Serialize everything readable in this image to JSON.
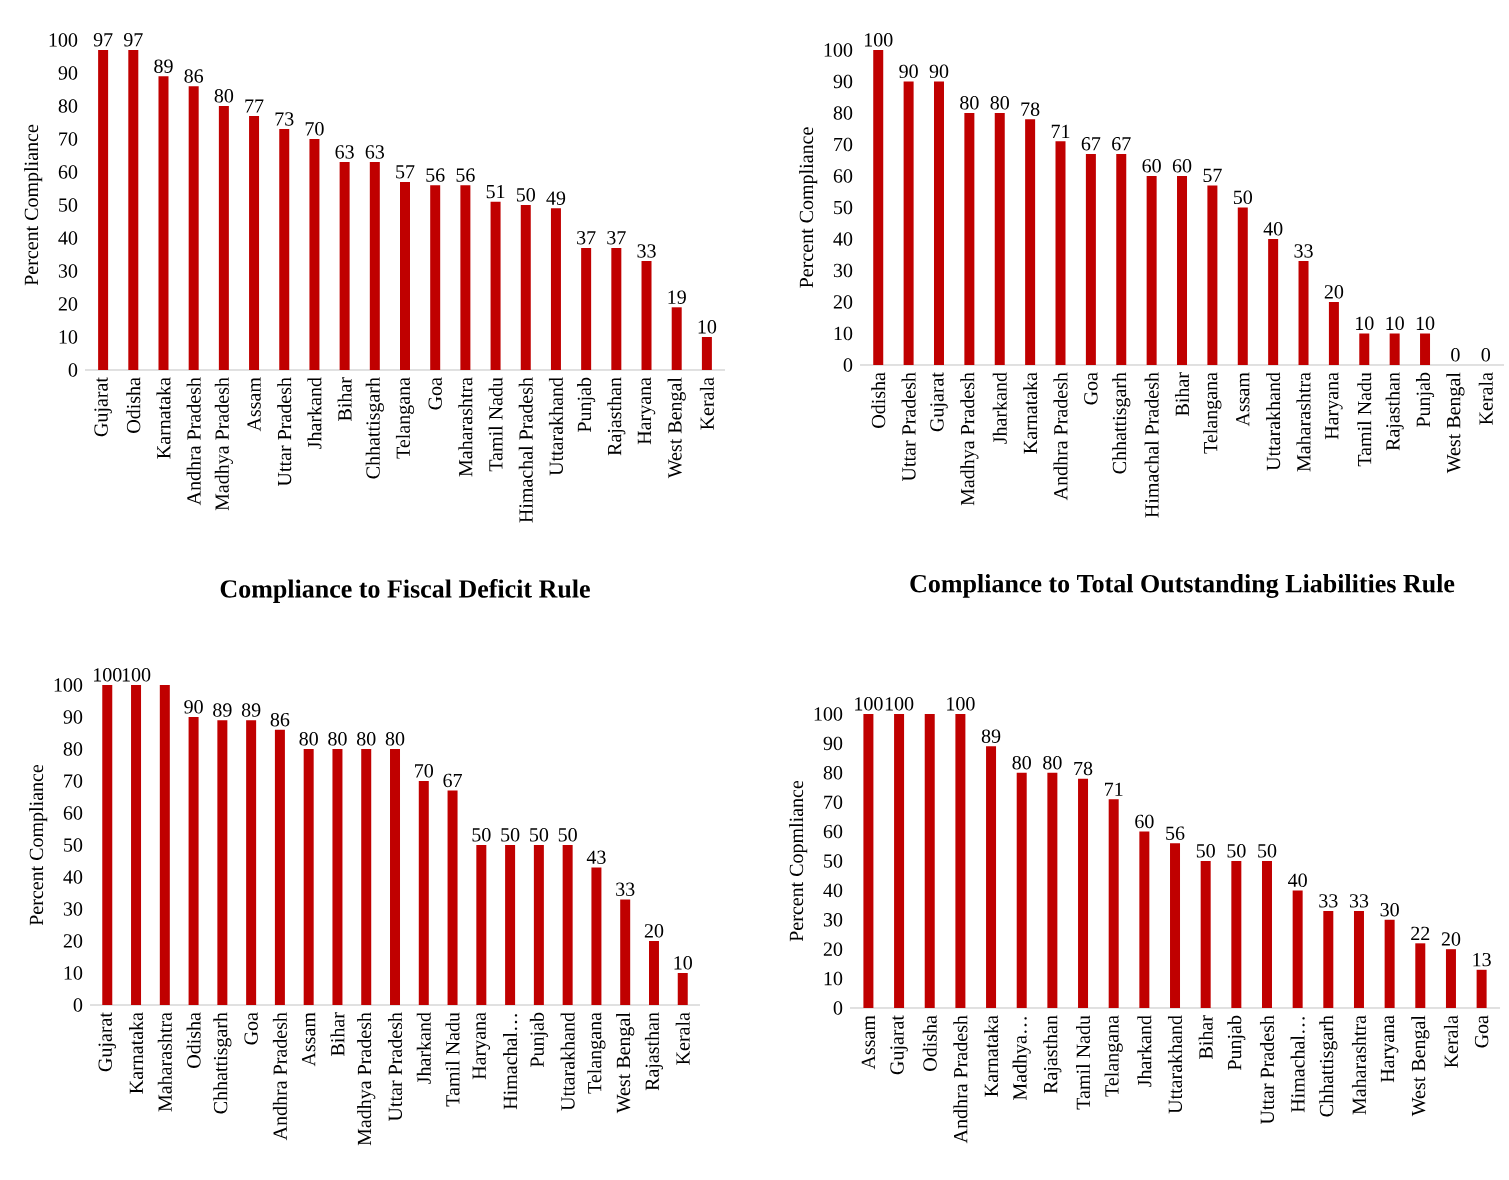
{
  "chart_data": [
    {
      "type": "bar",
      "title": "Compliance to Fiscal Deficit Rule",
      "ylabel": "Percent Compliance",
      "color": "#c00000",
      "data_labels": true,
      "categories": [
        "Gujarat",
        "Odisha",
        "Karnataka",
        "Andhra Pradesh",
        "Madhya Pradesh",
        "Assam",
        "Uttar Pradesh",
        "Jharkand",
        "Bihar",
        "Chhattisgarh",
        "Telangana",
        "Goa",
        "Maharashtra",
        "Tamil Nadu",
        "Himachal Pradesh",
        "Uttarakhand",
        "Punjab",
        "Rajasthan",
        "Haryana",
        "West Bengal",
        "Kerala"
      ],
      "values": [
        97,
        97,
        89,
        86,
        80,
        77,
        73,
        70,
        63,
        63,
        57,
        56,
        56,
        51,
        50,
        49,
        37,
        37,
        33,
        19,
        10
      ],
      "ylim": [
        0,
        100
      ],
      "yticks": [
        0,
        10,
        20,
        30,
        40,
        50,
        60,
        70,
        80,
        90,
        100
      ]
    },
    {
      "type": "bar",
      "title": "Compliance to Total Outstanding Liabilities Rule",
      "ylabel": "Percent Compliance",
      "color": "#c00000",
      "data_labels": true,
      "categories": [
        "Odisha",
        "Uttar Pradesh",
        "Gujarat",
        "Madhya Pradesh",
        "Jharkand",
        "Karnataka",
        "Andhra Pradesh",
        "Goa",
        "Chhattisgarh",
        "Himachal Pradesh",
        "Bihar",
        "Telangana",
        "Assam",
        "Uttarakhand",
        "Maharashtra",
        "Haryana",
        "Tamil Nadu",
        "Rajasthan",
        "Punjab",
        "West Bengal",
        "Kerala"
      ],
      "values": [
        100,
        90,
        90,
        80,
        80,
        78,
        71,
        67,
        67,
        60,
        60,
        57,
        50,
        40,
        33,
        20,
        10,
        10,
        10,
        0,
        0
      ],
      "ylim": [
        0,
        100
      ],
      "yticks": [
        0,
        10,
        20,
        30,
        40,
        50,
        60,
        70,
        80,
        90,
        100
      ]
    },
    {
      "type": "bar",
      "ylabel": "Percent Compliance",
      "color": "#c00000",
      "categories": [
        "Gujarat",
        "Karnataka",
        "Maharashtra",
        "Odisha",
        "Chhattisgarh",
        "Goa",
        "Andhra Pradesh",
        "Assam",
        "Bihar",
        "Madhya Pradesh",
        "Uttar Pradesh",
        "Jharkand",
        "Tamil Nadu",
        "Haryana",
        "Himachal…",
        "Punjab",
        "Uttarakhand",
        "Telangana",
        "West Bengal",
        "Rajasthan",
        "Kerala"
      ],
      "values": [
        100,
        100,
        100,
        90,
        89,
        89,
        86,
        80,
        80,
        80,
        80,
        70,
        67,
        50,
        50,
        50,
        50,
        43,
        33,
        20,
        10
      ],
      "value_labels": [
        "100",
        "100",
        null,
        "90",
        "89",
        "89",
        "86",
        "80",
        "80",
        "80",
        "80",
        "70",
        "67",
        "50",
        "50",
        "50",
        "50",
        "43",
        "33",
        "20",
        "10"
      ],
      "ylim": [
        0,
        100
      ],
      "yticks": [
        0,
        10,
        20,
        30,
        40,
        50,
        60,
        70,
        80,
        90,
        100
      ]
    },
    {
      "type": "bar",
      "ylabel": "Percent Copmliance",
      "color": "#c00000",
      "categories": [
        "Assam",
        "Gujarat",
        "Odisha",
        "Andhra Pradesh",
        "Karnataka",
        "Madhya…",
        "Rajasthan",
        "Tamil Nadu",
        "Telangana",
        "Jharkand",
        "Uttarakhand",
        "Bihar",
        "Punjab",
        "Uttar Pradesh",
        "Himachal…",
        "Chhattisgarh",
        "Maharashtra",
        "Haryana",
        "West Bengal",
        "Kerala",
        "Goa"
      ],
      "values": [
        100,
        100,
        100,
        100,
        89,
        80,
        80,
        78,
        71,
        60,
        56,
        50,
        50,
        50,
        40,
        33,
        33,
        30,
        22,
        20,
        13
      ],
      "value_labels": [
        "100",
        "100",
        null,
        "100",
        "89",
        "80",
        "80",
        "78",
        "71",
        "60",
        "56",
        "50",
        "50",
        "50",
        "40",
        "33",
        "33",
        "30",
        "22",
        "20",
        "13"
      ],
      "ylim": [
        0,
        100
      ],
      "yticks": [
        0,
        10,
        20,
        30,
        40,
        50,
        60,
        70,
        80,
        90,
        100
      ]
    }
  ]
}
